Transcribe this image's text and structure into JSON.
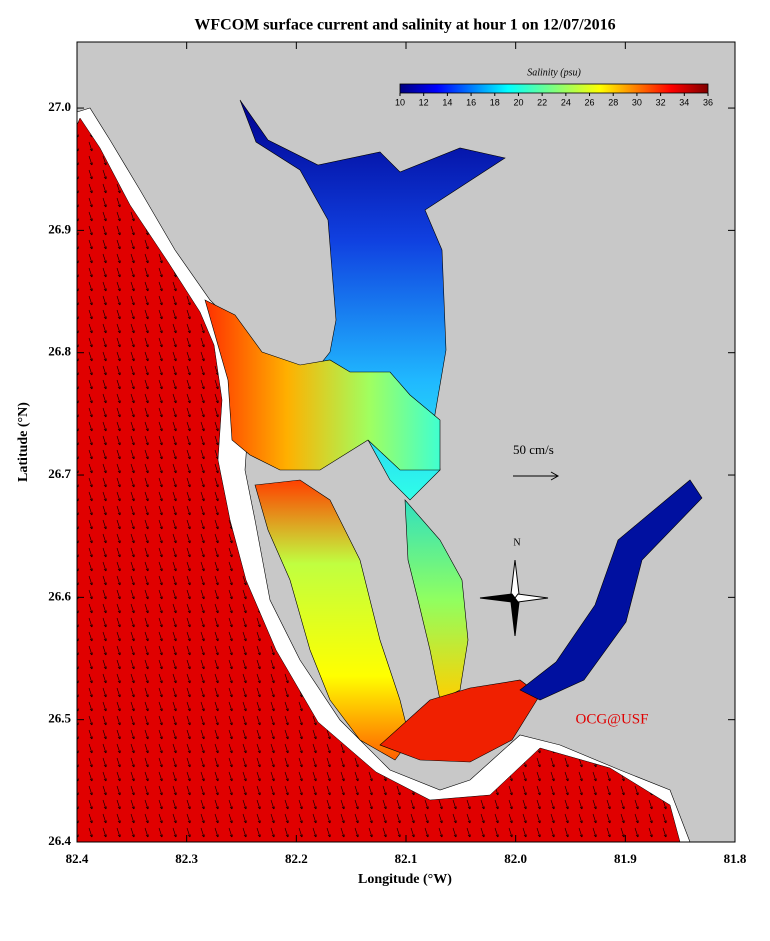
{
  "chart_data": {
    "type": "map",
    "title": "WFCOM surface current and salinity at hour 1 on 12/07/2016",
    "x_label": "Longitude (°W)",
    "y_label": "Latitude (°N)",
    "xlim": [
      82.4,
      81.8
    ],
    "ylim": [
      26.4,
      27.054
    ],
    "xticks": [
      82.4,
      82.3,
      82.2,
      82.1,
      {
        "value": 82.0,
        "label": "82.0"
      },
      81.9,
      81.8
    ],
    "yticks": [
      26.4,
      26.5,
      26.6,
      26.7,
      26.8,
      26.9,
      {
        "value": 27.0,
        "label": "27.0"
      }
    ],
    "colorbar": {
      "title": "Salinity (psu)",
      "range": [
        10,
        36
      ],
      "ticks": [
        10,
        12,
        14,
        16,
        18,
        20,
        22,
        24,
        26,
        28,
        30,
        32,
        34,
        36
      ]
    },
    "scale_label": "50 cm/s",
    "compass_label": "N",
    "credit": "OCG@USF"
  }
}
